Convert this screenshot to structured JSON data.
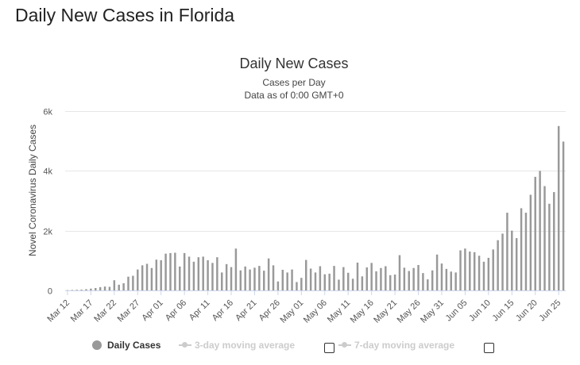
{
  "page_title": "Daily New Cases in Florida",
  "chart_data": {
    "type": "bar",
    "title": "Daily New Cases",
    "subtitle": "Cases per Day",
    "subtitle2": "Data as of 0:00 GMT+0",
    "ylabel": "Novel Coronavirus Daily Cases",
    "xlabel": "",
    "ylim": [
      0,
      6000
    ],
    "yticks": [
      "0",
      "2k",
      "4k",
      "6k"
    ],
    "ytick_values": [
      0,
      2000,
      4000,
      6000
    ],
    "grid": true,
    "bar_color": "#999999",
    "xtick_labels": [
      "Mar 12",
      "Mar 17",
      "Mar 22",
      "Mar 27",
      "Apr 01",
      "Apr 06",
      "Apr 11",
      "Apr 16",
      "Apr 21",
      "Apr 26",
      "May 01",
      "May 06",
      "May 11",
      "May 16",
      "May 21",
      "May 26",
      "May 31",
      "Jun 05",
      "Jun 10",
      "Jun 15",
      "Jun 20",
      "Jun 25"
    ],
    "categories": [
      "Mar 12",
      "Mar 13",
      "Mar 14",
      "Mar 15",
      "Mar 16",
      "Mar 17",
      "Mar 18",
      "Mar 19",
      "Mar 20",
      "Mar 21",
      "Mar 22",
      "Mar 23",
      "Mar 24",
      "Mar 25",
      "Mar 26",
      "Mar 27",
      "Mar 28",
      "Mar 29",
      "Mar 30",
      "Mar 31",
      "Apr 01",
      "Apr 02",
      "Apr 03",
      "Apr 04",
      "Apr 05",
      "Apr 06",
      "Apr 07",
      "Apr 08",
      "Apr 09",
      "Apr 10",
      "Apr 11",
      "Apr 12",
      "Apr 13",
      "Apr 14",
      "Apr 15",
      "Apr 16",
      "Apr 17",
      "Apr 18",
      "Apr 19",
      "Apr 20",
      "Apr 21",
      "Apr 22",
      "Apr 23",
      "Apr 24",
      "Apr 25",
      "Apr 26",
      "Apr 27",
      "Apr 28",
      "Apr 29",
      "Apr 30",
      "May 01",
      "May 02",
      "May 03",
      "May 04",
      "May 05",
      "May 06",
      "May 07",
      "May 08",
      "May 09",
      "May 10",
      "May 11",
      "May 12",
      "May 13",
      "May 14",
      "May 15",
      "May 16",
      "May 17",
      "May 18",
      "May 19",
      "May 20",
      "May 21",
      "May 22",
      "May 23",
      "May 24",
      "May 25",
      "May 26",
      "May 27",
      "May 28",
      "May 29",
      "May 30",
      "May 31",
      "Jun 01",
      "Jun 02",
      "Jun 03",
      "Jun 04",
      "Jun 05",
      "Jun 06",
      "Jun 07",
      "Jun 08",
      "Jun 09",
      "Jun 10",
      "Jun 11",
      "Jun 12",
      "Jun 13",
      "Jun 14",
      "Jun 15",
      "Jun 16",
      "Jun 17",
      "Jun 18",
      "Jun 19",
      "Jun 20",
      "Jun 21",
      "Jun 22",
      "Jun 23",
      "Jun 24",
      "Jun 25",
      "Jun 26"
    ],
    "series": [
      {
        "name": "Daily Cases",
        "values": [
          10,
          15,
          20,
          25,
          40,
          60,
          80,
          110,
          130,
          120,
          340,
          190,
          240,
          460,
          490,
          700,
          840,
          890,
          750,
          1030,
          1010,
          1230,
          1250,
          1260,
          800,
          1250,
          1130,
          960,
          1110,
          1130,
          1010,
          920,
          1110,
          600,
          880,
          780,
          1400,
          670,
          800,
          700,
          760,
          820,
          660,
          1070,
          840,
          300,
          690,
          600,
          700,
          280,
          420,
          1020,
          730,
          600,
          810,
          540,
          560,
          820,
          360,
          780,
          590,
          390,
          930,
          470,
          770,
          920,
          640,
          750,
          810,
          510,
          530,
          1180,
          760,
          650,
          750,
          850,
          580,
          370,
          670,
          1200,
          900,
          720,
          630,
          600,
          1340,
          1400,
          1300,
          1280,
          1160,
          960,
          1090,
          1370,
          1680,
          1900,
          2600,
          2000,
          1750,
          2750,
          2600,
          3200,
          3800,
          4000,
          3490,
          2900,
          3290,
          5500,
          4980
        ]
      }
    ]
  },
  "legend": {
    "items": [
      {
        "label": "Daily Cases"
      },
      {
        "label": "3-day moving average"
      },
      {
        "label": "7-day moving average"
      }
    ]
  }
}
